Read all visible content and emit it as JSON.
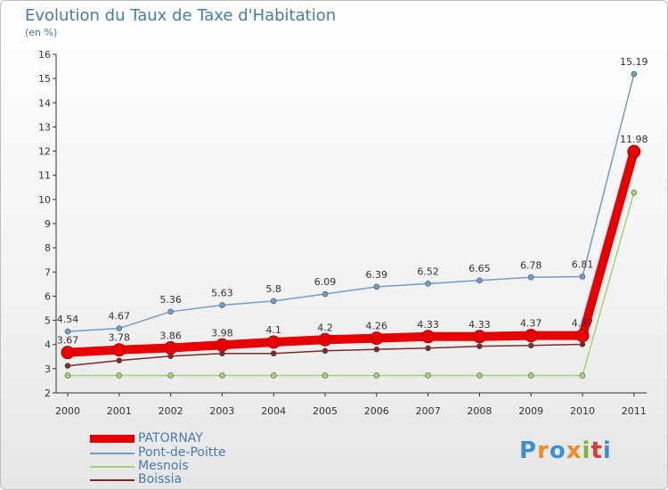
{
  "title": "Evolution du Taux de Taxe d'Habitation",
  "unit": "(en %)",
  "brand": {
    "letters": [
      "P",
      "r",
      "o",
      "x",
      "i",
      "t",
      "i"
    ],
    "colors": [
      "#3d8fd1",
      "#f08a24",
      "#3d8fd1",
      "#f08a24",
      "#79b83a",
      "#d93a2f",
      "#3d8fd1"
    ]
  },
  "chart_data": {
    "type": "line",
    "x": [
      "2000",
      "2001",
      "2002",
      "2003",
      "2004",
      "2005",
      "2006",
      "2007",
      "2008",
      "2009",
      "2010",
      "2011"
    ],
    "ylim": [
      2,
      16
    ],
    "yticks": [
      "2",
      "3",
      "4",
      "5",
      "6",
      "7",
      "8",
      "9",
      "10",
      "11",
      "12",
      "13",
      "14",
      "15",
      "16"
    ],
    "grid": false,
    "legend_position": "bottom-left",
    "series": [
      {
        "name": "PATORNAY",
        "color": "#e60000",
        "values": [
          3.67,
          3.78,
          3.86,
          3.98,
          4.1,
          4.2,
          4.26,
          4.33,
          4.33,
          4.37,
          4.37,
          11.98
        ],
        "labels": [
          "3.67",
          "3.78",
          "3.86",
          "3.98",
          "4.1",
          "4.2",
          "4.26",
          "4.33",
          "4.33",
          "4.37",
          "4.37",
          "11.98"
        ]
      },
      {
        "name": "Pont-de-Poitte",
        "color": "#6f9ec9",
        "values": [
          4.54,
          4.67,
          5.36,
          5.63,
          5.8,
          6.09,
          6.39,
          6.52,
          6.65,
          6.78,
          6.81,
          15.19
        ],
        "labels": [
          "4.54",
          "4.67",
          "5.36",
          "5.63",
          "5.8",
          "6.09",
          "6.39",
          "6.52",
          "6.65",
          "6.78",
          "6.81",
          "15.19"
        ]
      },
      {
        "name": "Mesnois",
        "color": "#9ed672",
        "values": [
          2.72,
          2.72,
          2.72,
          2.72,
          2.72,
          2.72,
          2.72,
          2.72,
          2.72,
          2.72,
          2.72,
          10.28
        ],
        "labels": [
          "2.72",
          "2.72",
          "2.72",
          "2.72",
          "2.72",
          "2.72",
          "2.72",
          "2.72",
          "2.72",
          "2.72",
          "2.72",
          "10.28"
        ]
      },
      {
        "name": "Boissia",
        "color": "#7a2a2a",
        "values": [
          3.12,
          3.34,
          3.52,
          3.63,
          3.63,
          3.74,
          3.8,
          3.85,
          3.93,
          3.96,
          4.01,
          11.72
        ],
        "labels": [
          "3.12",
          "3.34",
          "3.52",
          "3.63",
          "3.63",
          "3.74",
          "3.8",
          "3.85",
          "3.93",
          "3.96",
          "4.01",
          "11.72"
        ]
      }
    ]
  }
}
